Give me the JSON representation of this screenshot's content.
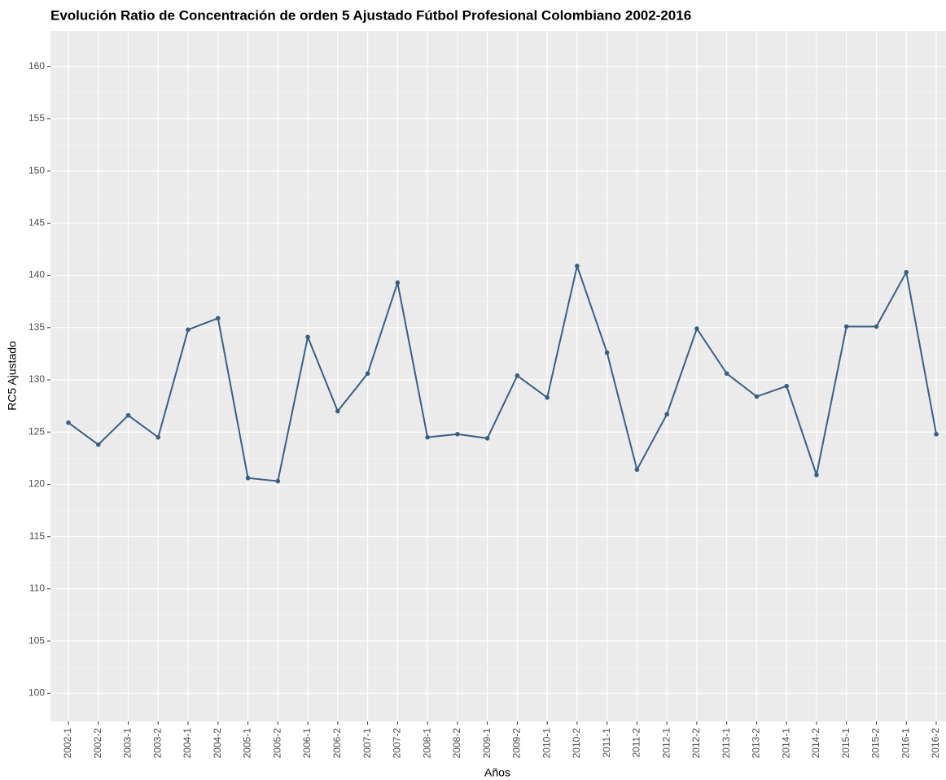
{
  "chart_data": {
    "type": "line",
    "title": "Evolución Ratio de Concentración de orden 5 Ajustado Fútbol Profesional Colombiano 2002-2016",
    "x_label": "Años",
    "y_label": "RC5 Ajustado",
    "categories": [
      "2002-1",
      "2002-2",
      "2003-1",
      "2003-2",
      "2004-1",
      "2004-2",
      "2005-1",
      "2005-2",
      "2006-1",
      "2006-2",
      "2007-1",
      "2007-2",
      "2008-1",
      "2008-2",
      "2009-1",
      "2009-2",
      "2010-1",
      "2010-2",
      "2011-1",
      "2011-2",
      "2012-1",
      "2012-2",
      "2013-1",
      "2013-2",
      "2014-1",
      "2014-2",
      "2015-1",
      "2015-2",
      "2016-1",
      "2016-2"
    ],
    "values": [
      125.9,
      123.8,
      126.6,
      124.5,
      134.8,
      135.9,
      120.6,
      120.3,
      134.1,
      127.0,
      130.6,
      139.3,
      124.5,
      124.8,
      124.4,
      130.4,
      128.3,
      140.9,
      132.6,
      121.4,
      126.7,
      134.9,
      130.6,
      128.4,
      129.4,
      120.9,
      135.1,
      135.1,
      140.3,
      124.8
    ],
    "color": "#3a5f85",
    "ylim": [
      97.3,
      163.4
    ],
    "yticks": [
      100,
      105,
      110,
      115,
      120,
      125,
      130,
      135,
      140,
      145,
      150,
      155,
      160
    ],
    "grid": true
  }
}
